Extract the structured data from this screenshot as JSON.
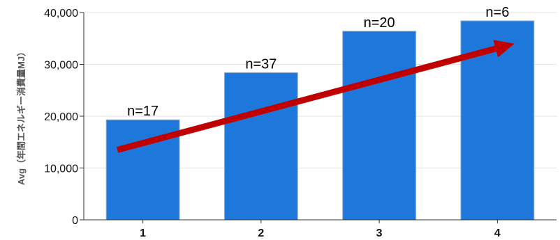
{
  "chart_data": {
    "type": "bar",
    "title": "",
    "xlabel": "",
    "ylabel": "Avg（年間エネルギー消費量MJ）",
    "categories": [
      "1",
      "2",
      "3",
      "4"
    ],
    "values": [
      19300,
      28400,
      36400,
      38400
    ],
    "data_labels": [
      "n=17",
      "n=37",
      "n=20",
      "n=6"
    ],
    "ylim": [
      0,
      40000
    ],
    "yticks": [
      0,
      10000,
      20000,
      30000,
      40000
    ],
    "ytick_labels": [
      "0",
      "10,000",
      "20,000",
      "30,000",
      "40,000"
    ],
    "grid": true,
    "legend": "none",
    "bar_color": "#1e78dc",
    "bar_edge_color": "#9fb3c8",
    "grid_color": "#e3e3e3",
    "trend_arrow": {
      "color": "#c00000",
      "from": {
        "x": "1",
        "y": 13500
      },
      "to": {
        "x": "4",
        "y": 34000
      }
    }
  }
}
